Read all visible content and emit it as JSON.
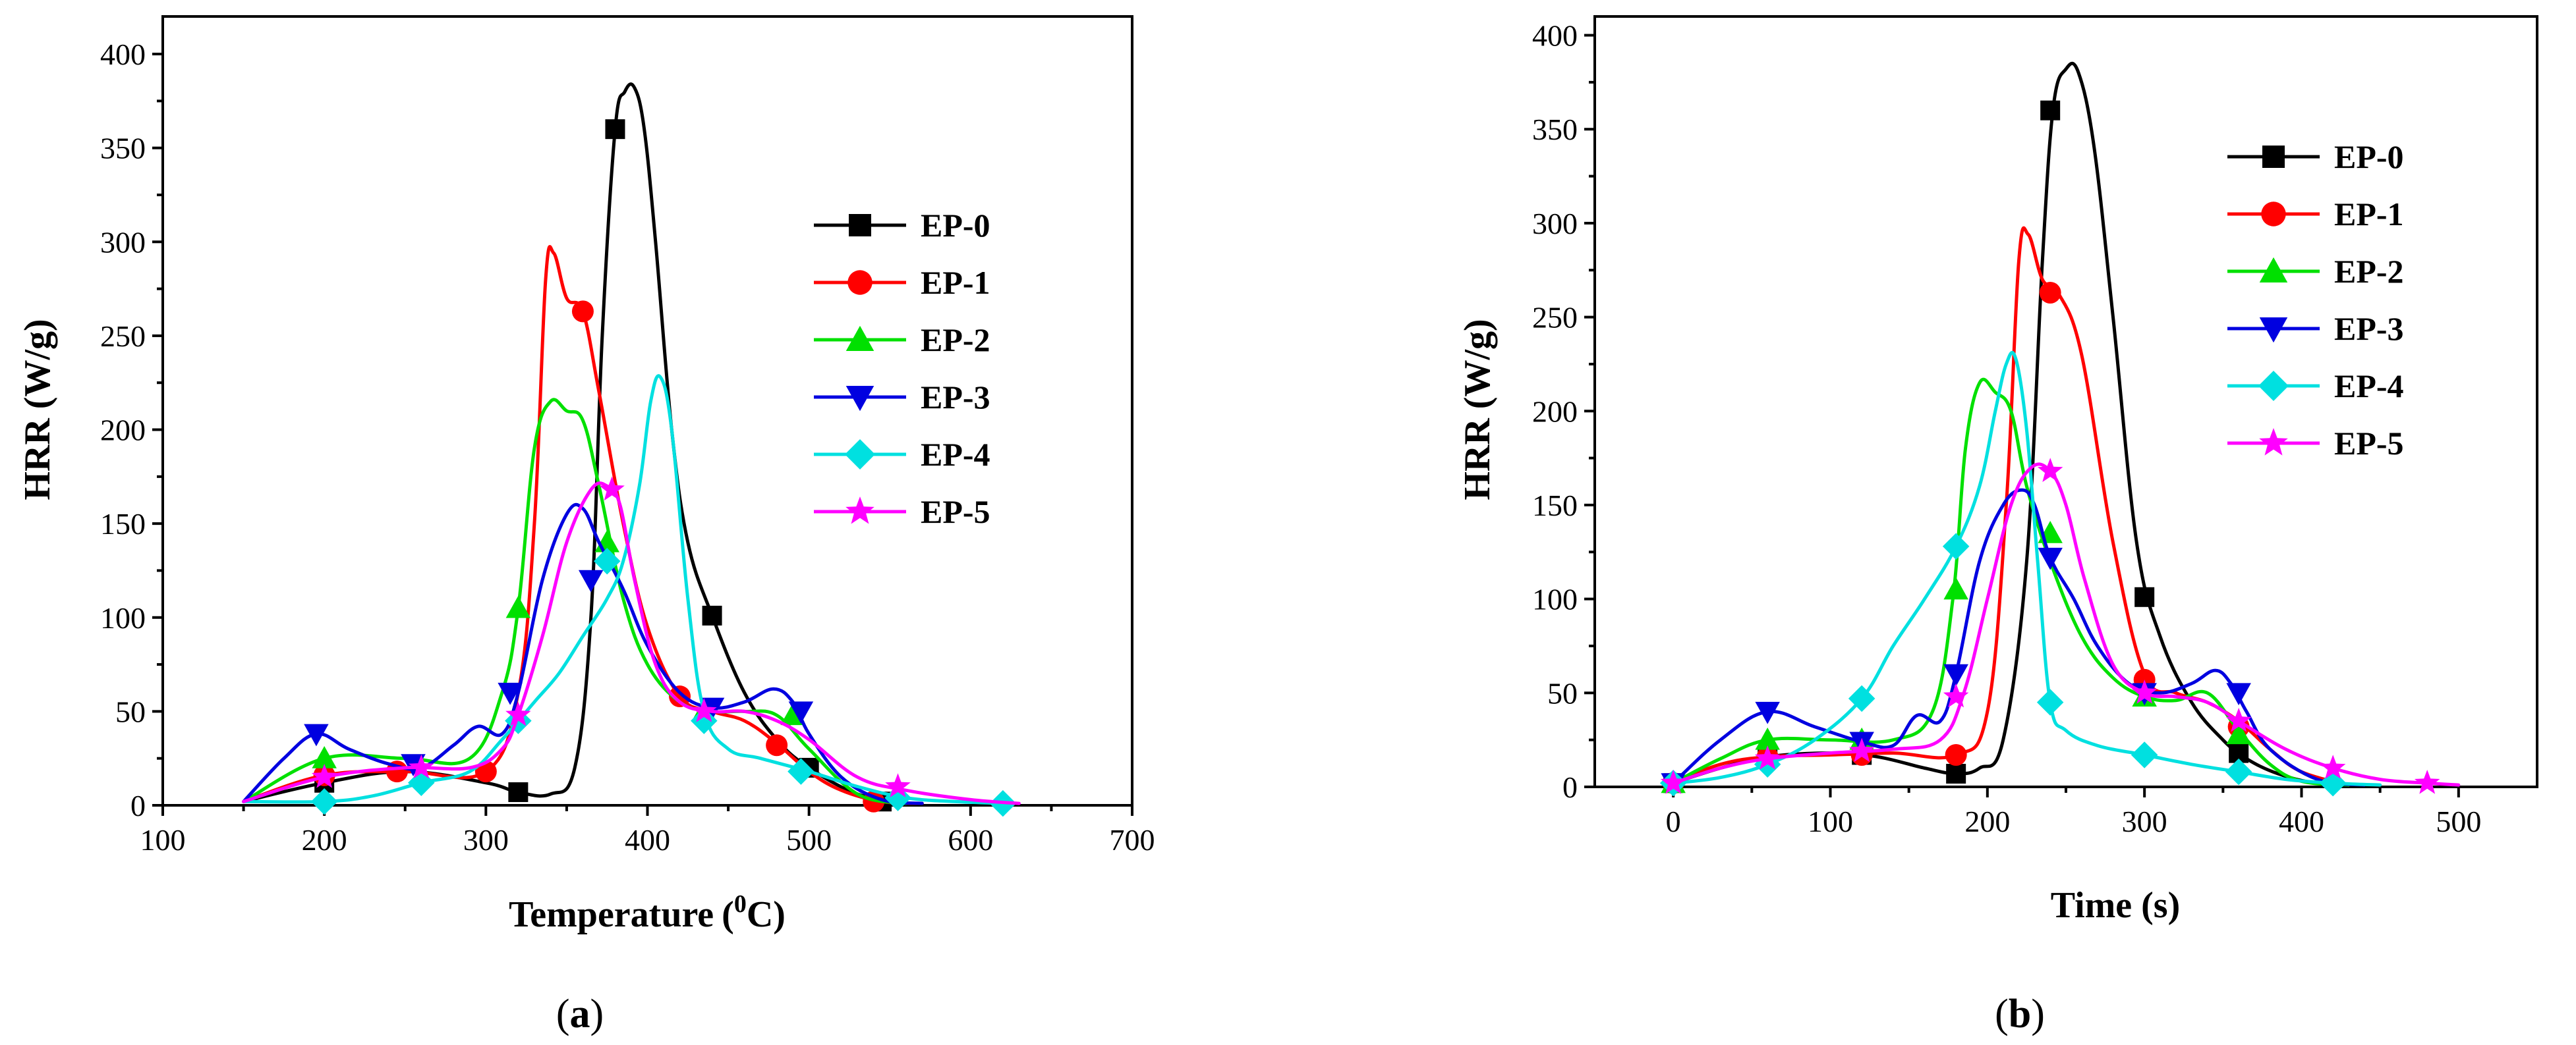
{
  "chart_data": [
    {
      "id": "a",
      "type": "line",
      "panel_label": "a",
      "xlabel": "Temperature",
      "xlabel_sup": "0",
      "xlabel_unit": "C)",
      "xlabel_paren": "(",
      "ylabel": "HRR  (W/g)",
      "xlim": [
        100,
        700
      ],
      "ylim": [
        0,
        420
      ],
      "xticks": [
        100,
        200,
        300,
        400,
        500,
        600,
        700
      ],
      "yticks": [
        0,
        50,
        100,
        150,
        200,
        250,
        300,
        350,
        400
      ],
      "legend_position": "right",
      "series": [
        {
          "name": "EP-0",
          "color": "#000000",
          "marker": "square",
          "x": [
            150,
            200,
            250,
            300,
            320,
            340,
            355,
            365,
            372,
            380,
            386,
            392,
            398,
            405,
            415,
            425,
            440,
            460,
            480,
            500,
            530,
            560
          ],
          "y": [
            2,
            12,
            18,
            12,
            7,
            6,
            20,
            100,
            250,
            360,
            380,
            382,
            360,
            300,
            200,
            140,
            101,
            60,
            35,
            20,
            6,
            1
          ],
          "markers_x": [
            200,
            320,
            380,
            440,
            500,
            545
          ],
          "markers_y": [
            12,
            7,
            360,
            101,
            20,
            2
          ]
        },
        {
          "name": "EP-1",
          "color": "#ff0000",
          "marker": "circle",
          "x": [
            150,
            200,
            250,
            300,
            320,
            330,
            337,
            342,
            350,
            360,
            370,
            385,
            400,
            420,
            440,
            460,
            480,
            500,
            520,
            545,
            570
          ],
          "y": [
            2,
            16,
            18,
            18,
            60,
            150,
            280,
            294,
            270,
            263,
            220,
            150,
            95,
            58,
            50,
            45,
            33,
            18,
            8,
            2,
            1
          ],
          "markers_x": [
            200,
            245,
            300,
            360,
            420,
            480,
            540
          ],
          "markers_y": [
            16,
            18,
            18,
            263,
            58,
            32,
            2
          ]
        },
        {
          "name": "EP-2",
          "color": "#00e000",
          "marker": "triangle-up",
          "x": [
            150,
            200,
            250,
            290,
            310,
            320,
            330,
            340,
            350,
            360,
            370,
            385,
            400,
            420,
            440,
            460,
            480,
            500,
            530,
            560
          ],
          "y": [
            2,
            25,
            25,
            25,
            60,
            105,
            190,
            215,
            210,
            205,
            170,
            110,
            75,
            55,
            50,
            50,
            48,
            30,
            6,
            1
          ],
          "markers_x": [
            200,
            320,
            375,
            435,
            490
          ],
          "markers_y": [
            25,
            105,
            140,
            50,
            48
          ]
        },
        {
          "name": "EP-3",
          "color": "#0000e0",
          "marker": "triangle-down",
          "x": [
            150,
            175,
            195,
            215,
            240,
            260,
            280,
            295,
            310,
            320,
            335,
            350,
            360,
            370,
            385,
            400,
            420,
            440,
            460,
            478,
            490,
            500,
            520,
            545,
            570
          ],
          "y": [
            2,
            25,
            38,
            30,
            22,
            20,
            32,
            42,
            38,
            60,
            120,
            155,
            158,
            140,
            115,
            85,
            60,
            52,
            55,
            62,
            55,
            38,
            15,
            3,
            1
          ],
          "markers_x": [
            195,
            255,
            315,
            365,
            440,
            495
          ],
          "markers_y": [
            38,
            22,
            60,
            120,
            52,
            50
          ]
        },
        {
          "name": "EP-4",
          "color": "#00e0e0",
          "marker": "diamond",
          "x": [
            150,
            200,
            230,
            260,
            290,
            310,
            330,
            345,
            360,
            375,
            385,
            395,
            402,
            408,
            415,
            425,
            435,
            450,
            470,
            500,
            530,
            560,
            590,
            620
          ],
          "y": [
            2,
            2,
            5,
            12,
            18,
            35,
            55,
            70,
            90,
            110,
            130,
            170,
            215,
            228,
            200,
            110,
            50,
            30,
            25,
            18,
            10,
            4,
            2,
            1
          ],
          "markers_x": [
            200,
            260,
            320,
            375,
            435,
            495,
            555,
            620
          ],
          "markers_y": [
            2,
            12,
            45,
            130,
            45,
            18,
            4,
            1
          ]
        },
        {
          "name": "EP-5",
          "color": "#ff00ff",
          "marker": "star",
          "x": [
            150,
            200,
            250,
            290,
            310,
            320,
            335,
            350,
            365,
            375,
            383,
            392,
            405,
            420,
            440,
            460,
            480,
            500,
            530,
            560,
            600,
            630
          ],
          "y": [
            2,
            15,
            20,
            20,
            30,
            48,
            90,
            140,
            168,
            170,
            160,
            120,
            75,
            55,
            50,
            50,
            45,
            35,
            15,
            8,
            3,
            1
          ],
          "markers_x": [
            200,
            260,
            320,
            378,
            435,
            555
          ],
          "markers_y": [
            15,
            20,
            48,
            168,
            50,
            10
          ]
        }
      ]
    },
    {
      "id": "b",
      "type": "line",
      "panel_label": "b",
      "xlabel": "Time (s)",
      "ylabel": "HRR  (W/g)",
      "xlim": [
        -50,
        550
      ],
      "ylim": [
        0,
        410
      ],
      "xticks": [
        0,
        100,
        200,
        300,
        400,
        500
      ],
      "yticks": [
        0,
        50,
        100,
        150,
        200,
        250,
        300,
        350,
        400
      ],
      "legend_position": "top-right",
      "series": [
        {
          "name": "EP-0",
          "color": "#000000",
          "marker": "square",
          "x": [
            0,
            30,
            60,
            100,
            130,
            160,
            180,
            195,
            210,
            225,
            235,
            242,
            250,
            258,
            268,
            280,
            295,
            310,
            330,
            350,
            365,
            385,
            410,
            440
          ],
          "y": [
            2,
            10,
            16,
            18,
            16,
            10,
            7,
            10,
            25,
            120,
            280,
            362,
            382,
            380,
            340,
            250,
            130,
            80,
            45,
            25,
            15,
            7,
            2,
            1
          ],
          "markers_x": [
            0,
            60,
            120,
            180,
            240,
            300,
            360
          ],
          "markers_y": [
            2,
            16,
            17,
            7,
            360,
            101,
            18
          ]
        },
        {
          "name": "EP-1",
          "color": "#ff0000",
          "marker": "circle",
          "x": [
            0,
            30,
            60,
            100,
            140,
            180,
            200,
            212,
            220,
            226,
            235,
            245,
            260,
            280,
            300,
            320,
            340,
            360,
            380,
            400,
            430
          ],
          "y": [
            2,
            12,
            16,
            17,
            18,
            17,
            40,
            150,
            280,
            294,
            270,
            263,
            230,
            130,
            60,
            50,
            45,
            35,
            20,
            8,
            1
          ],
          "markers_x": [
            0,
            60,
            120,
            180,
            240,
            300,
            360
          ],
          "markers_y": [
            2,
            16,
            17,
            17,
            263,
            57,
            32
          ]
        },
        {
          "name": "EP-2",
          "color": "#00e000",
          "marker": "triangle-up",
          "x": [
            0,
            30,
            60,
            100,
            140,
            165,
            178,
            186,
            195,
            205,
            215,
            225,
            240,
            260,
            280,
            300,
            320,
            340,
            360,
            380,
            400,
            430
          ],
          "y": [
            2,
            15,
            25,
            25,
            25,
            40,
            100,
            180,
            215,
            210,
            200,
            160,
            120,
            80,
            58,
            48,
            46,
            50,
            30,
            12,
            3,
            1
          ],
          "markers_x": [
            0,
            60,
            120,
            180,
            240,
            300,
            360
          ],
          "markers_y": [
            2,
            25,
            25,
            105,
            135,
            48,
            28
          ]
        },
        {
          "name": "EP-3",
          "color": "#0000e0",
          "marker": "triangle-down",
          "x": [
            0,
            30,
            60,
            90,
            120,
            140,
            155,
            170,
            180,
            195,
            210,
            222,
            230,
            240,
            255,
            270,
            290,
            310,
            330,
            345,
            355,
            365,
            380,
            410,
            440
          ],
          "y": [
            2,
            25,
            40,
            32,
            24,
            22,
            38,
            35,
            60,
            120,
            150,
            158,
            150,
            122,
            100,
            75,
            55,
            50,
            55,
            62,
            55,
            40,
            20,
            4,
            1
          ],
          "markers_x": [
            0,
            60,
            120,
            180,
            240,
            300,
            360
          ],
          "markers_y": [
            2,
            40,
            24,
            60,
            122,
            50,
            50
          ]
        },
        {
          "name": "EP-4",
          "color": "#00e0e0",
          "marker": "diamond",
          "x": [
            0,
            30,
            60,
            90,
            120,
            140,
            160,
            180,
            195,
            205,
            212,
            218,
            225,
            232,
            240,
            250,
            270,
            300,
            330,
            360,
            390,
            420,
            450
          ],
          "y": [
            2,
            5,
            12,
            25,
            47,
            75,
            100,
            128,
            160,
            200,
            225,
            228,
            190,
            120,
            45,
            30,
            22,
            17,
            12,
            8,
            4,
            2,
            1
          ],
          "markers_x": [
            0,
            60,
            120,
            180,
            240,
            300,
            360,
            420
          ],
          "markers_y": [
            2,
            12,
            47,
            128,
            45,
            17,
            8,
            2
          ]
        },
        {
          "name": "EP-5",
          "color": "#ff00ff",
          "marker": "star",
          "x": [
            0,
            30,
            60,
            100,
            140,
            170,
            185,
            200,
            215,
            228,
            240,
            250,
            262,
            280,
            300,
            320,
            340,
            360,
            390,
            420,
            450,
            480,
            500
          ],
          "y": [
            2,
            10,
            15,
            18,
            20,
            25,
            50,
            100,
            150,
            170,
            168,
            150,
            110,
            65,
            50,
            48,
            45,
            35,
            20,
            10,
            4,
            2,
            1
          ],
          "markers_x": [
            0,
            60,
            120,
            180,
            240,
            300,
            360,
            420,
            480
          ],
          "markers_y": [
            2,
            15,
            19,
            48,
            168,
            50,
            35,
            10,
            2
          ]
        }
      ]
    }
  ]
}
